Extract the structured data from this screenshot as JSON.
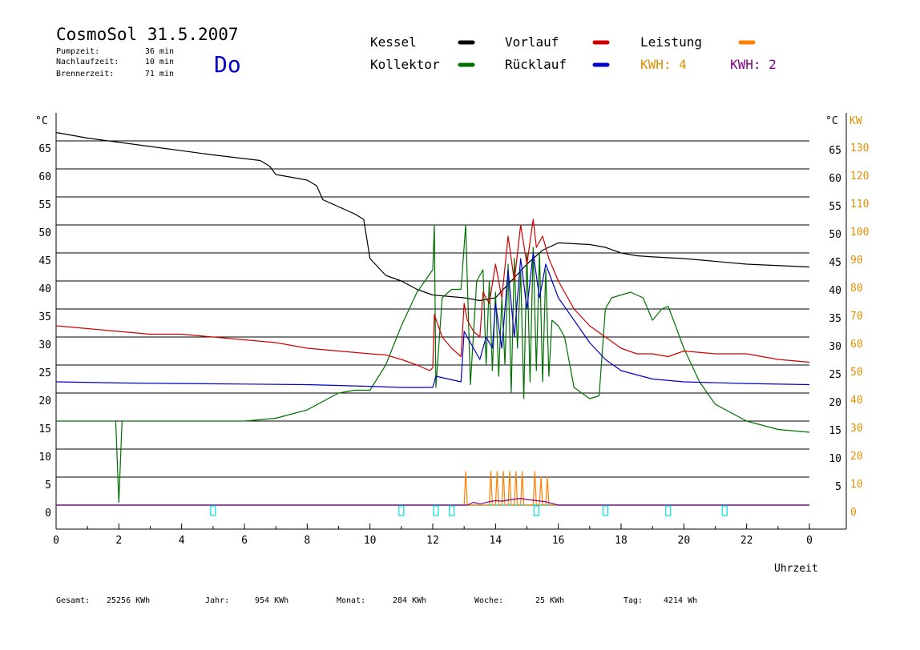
{
  "header": {
    "title": "CosmoSol 31.5.2007",
    "day": "Do",
    "stats": [
      {
        "label": "Pumpzeit:",
        "value": "36 min"
      },
      {
        "label": "Nachlaufzeit:",
        "value": "10 min"
      },
      {
        "label": "Brennerzeit:",
        "value": "71 min"
      }
    ]
  },
  "legend": {
    "kessel": "Kessel",
    "kollektor": "Kollektor",
    "vorlauf": "Vorlauf",
    "ruecklauf": "Rücklauf",
    "leistung": "Leistung",
    "kwh1": "KWH: 4",
    "kwh2": "KWH: 2"
  },
  "axes": {
    "left_unit": "°C",
    "right_unit": "°C",
    "right_kw_unit": "KW",
    "xlabel": "Uhrzeit"
  },
  "footer": [
    {
      "label": "Gesamt:",
      "value": "25256 KWh"
    },
    {
      "label": "Jahr:",
      "value": "954 KWh"
    },
    {
      "label": "Monat:",
      "value": "284 KWh"
    },
    {
      "label": "Woche:",
      "value": "25 KWh"
    },
    {
      "label": "Tag:",
      "value": "4214 Wh"
    }
  ],
  "colors": {
    "kessel": "#000000",
    "kollektor": "#007000",
    "vorlauf": "#d00000",
    "ruecklauf": "#0000c8",
    "leistung": "#ff8000",
    "kwh2": "#800080",
    "baseline": "#00e0e0",
    "kw_axis": "#e09000"
  },
  "chart_data": {
    "type": "line",
    "x_unit": "hour",
    "xlim": [
      0,
      24
    ],
    "ylim": [
      0,
      70
    ],
    "x_tick_labels": [
      "0",
      "2",
      "4",
      "6",
      "8",
      "10",
      "12",
      "14",
      "16",
      "18",
      "20",
      "22",
      "0"
    ],
    "y_left_ticks": [
      0,
      5,
      10,
      15,
      20,
      25,
      30,
      35,
      40,
      45,
      50,
      55,
      60,
      65
    ],
    "y_right_ticks": [
      5,
      10,
      15,
      20,
      25,
      30,
      35,
      40,
      45,
      50,
      55,
      60,
      65
    ],
    "y_right_kw_ticks": [
      0,
      10,
      20,
      30,
      40,
      50,
      60,
      70,
      80,
      90,
      100,
      110,
      120,
      130
    ],
    "series": [
      {
        "name": "Kessel",
        "x": [
          0,
          1,
          3,
          5,
          6.5,
          6.8,
          7,
          8,
          8.3,
          8.5,
          9.5,
          9.8,
          10,
          10.5,
          11,
          11.5,
          12,
          13,
          13.5,
          14,
          14.5,
          15,
          15.5,
          16,
          17,
          17.5,
          18,
          18.5,
          19,
          20,
          22,
          24
        ],
        "y": [
          66.5,
          65.5,
          64,
          62.5,
          61.5,
          60.5,
          59,
          58,
          57,
          54.5,
          52,
          51,
          44,
          41,
          40,
          38.5,
          37.5,
          37,
          36.5,
          37,
          40,
          43,
          45.5,
          46.8,
          46.5,
          46,
          45,
          44.5,
          44.3,
          44,
          43,
          42.5
        ]
      },
      {
        "name": "Kollektor",
        "x": [
          0,
          1,
          1.9,
          2,
          2.1,
          2.2,
          4,
          6,
          7,
          8,
          9,
          9.5,
          10,
          10.5,
          11,
          11.5,
          12,
          12.05,
          12.1,
          12.3,
          12.6,
          12.9,
          13.05,
          13.2,
          13.4,
          13.6,
          13.7,
          13.8,
          13.9,
          14,
          14.1,
          14.2,
          14.3,
          14.4,
          14.5,
          14.6,
          14.7,
          14.8,
          14.9,
          15,
          15.1,
          15.2,
          15.3,
          15.4,
          15.5,
          15.6,
          15.7,
          15.8,
          16,
          16.2,
          16.5,
          17,
          17.3,
          17.5,
          17.7,
          18,
          18.3,
          18.7,
          19,
          19.3,
          19.5,
          20,
          20.5,
          21,
          22,
          23,
          24
        ],
        "y": [
          15,
          15,
          15,
          0.5,
          15,
          15,
          15,
          15,
          15.5,
          17,
          20,
          20.5,
          20.5,
          25,
          32,
          38,
          42,
          50,
          21,
          37,
          38.5,
          38.5,
          50,
          21.5,
          40,
          42,
          25,
          40,
          24,
          38,
          23,
          37,
          25,
          43,
          20,
          44,
          28,
          42,
          19,
          45,
          22,
          46,
          24,
          45,
          22,
          42,
          23,
          33,
          32,
          30,
          21,
          19,
          19.5,
          35,
          37,
          37.5,
          38,
          37,
          33,
          35,
          35.5,
          28,
          22,
          18,
          15,
          13.5,
          13
        ]
      },
      {
        "name": "Vorlauf",
        "x": [
          0,
          1,
          2,
          3,
          4,
          5,
          6,
          7,
          8,
          9,
          10,
          10.5,
          11,
          11.5,
          11.9,
          12,
          12.05,
          12.3,
          12.6,
          12.9,
          13,
          13.1,
          13.3,
          13.5,
          13.6,
          13.8,
          14,
          14.2,
          14.4,
          14.6,
          14.8,
          15,
          15.2,
          15.3,
          15.5,
          15.7,
          16,
          16.5,
          17,
          17.5,
          18,
          18.5,
          19,
          19.5,
          20,
          21,
          22,
          23,
          24
        ],
        "y": [
          32,
          31.5,
          31,
          30.5,
          30.5,
          30,
          29.5,
          29,
          28,
          27.5,
          27,
          26.8,
          26,
          25,
          24,
          24.5,
          34,
          30,
          28,
          26.5,
          36,
          33,
          31,
          30,
          38,
          36,
          43,
          37,
          48,
          40,
          50,
          43,
          51,
          46,
          48,
          44,
          40,
          35,
          32,
          30,
          28,
          27,
          27,
          26.5,
          27.5,
          27,
          27,
          26,
          25.5
        ]
      },
      {
        "name": "Rücklauf",
        "x": [
          0,
          2,
          4,
          6,
          8,
          10,
          11,
          11.9,
          12,
          12.1,
          12.5,
          12.9,
          13,
          13.1,
          13.3,
          13.5,
          13.7,
          13.9,
          14,
          14.2,
          14.4,
          14.6,
          14.8,
          15,
          15.2,
          15.4,
          15.6,
          15.8,
          16,
          16.5,
          17,
          17.5,
          18,
          19,
          20,
          22,
          24
        ],
        "y": [
          22,
          21.8,
          21.7,
          21.6,
          21.5,
          21.2,
          21,
          21,
          21,
          23,
          22.5,
          22,
          31,
          30,
          28,
          26,
          30,
          28,
          36,
          28,
          42,
          30,
          44,
          35,
          45,
          37,
          43,
          40,
          37,
          33,
          29,
          26,
          24,
          22.5,
          22,
          21.7,
          21.5
        ]
      },
      {
        "name": "Leistung",
        "x": [
          0,
          13,
          13.05,
          13.1,
          13.8,
          13.85,
          13.9,
          14,
          14.05,
          14.1,
          14.2,
          14.25,
          14.3,
          14.4,
          14.45,
          14.5,
          14.6,
          14.65,
          14.7,
          14.8,
          14.85,
          14.9,
          15.2,
          15.25,
          15.3,
          15.4,
          15.45,
          15.5,
          15.6,
          15.65,
          15.7,
          24
        ],
        "y": [
          0,
          0,
          6,
          0,
          0,
          6,
          0,
          0,
          6,
          0,
          0,
          6,
          0,
          0,
          6,
          0,
          0,
          6,
          0,
          0,
          6,
          0,
          0,
          6,
          0,
          0,
          5,
          0,
          0,
          5,
          0,
          0
        ]
      },
      {
        "name": "KWH: 2",
        "x": [
          0,
          13.1,
          13.3,
          13.5,
          13.8,
          14,
          14.2,
          14.5,
          14.8,
          15,
          15.3,
          15.6,
          15.8,
          16,
          24
        ],
        "y": [
          0,
          0,
          0.5,
          0.2,
          0.6,
          0.8,
          0.7,
          1,
          1.2,
          1,
          0.8,
          0.6,
          0.3,
          0,
          0
        ]
      }
    ]
  }
}
